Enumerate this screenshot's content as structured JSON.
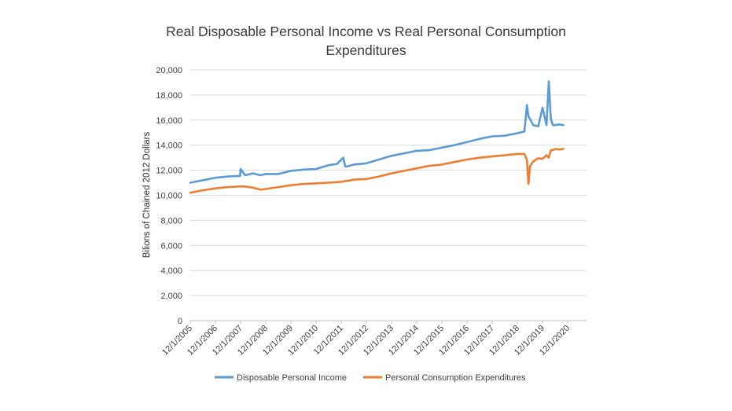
{
  "chart_data": {
    "type": "line",
    "title_line1": "Real Disposable Personal Income vs Real Personal Consumption",
    "title_line2": "Expenditures",
    "xlabel": "",
    "ylabel": "Bilions of Chained 2012 Dollars",
    "ylim": [
      0,
      20000
    ],
    "yticks": [
      "0",
      "2,000",
      "4,000",
      "6,000",
      "8,000",
      "10,000",
      "12,000",
      "14,000",
      "16,000",
      "18,000",
      "20,000"
    ],
    "xticks": [
      "12/1/2005",
      "12/1/2006",
      "12/1/2007",
      "12/1/2008",
      "12/1/2009",
      "12/1/2010",
      "12/1/2011",
      "12/1/2012",
      "12/1/2013",
      "12/1/2014",
      "12/1/2015",
      "12/1/2016",
      "12/1/2017",
      "12/1/2018",
      "12/1/2019",
      "12/1/2020"
    ],
    "grid": "horizontal",
    "legend_position": "bottom",
    "x": [
      2005.92,
      2006.42,
      2006.92,
      2007.42,
      2007.9,
      2007.92,
      2008.1,
      2008.42,
      2008.7,
      2008.92,
      2009.42,
      2009.92,
      2010.42,
      2010.92,
      2011.42,
      2011.75,
      2012.0,
      2012.08,
      2012.17,
      2012.42,
      2012.92,
      2013.42,
      2013.92,
      2014.42,
      2014.92,
      2015.42,
      2015.92,
      2016.42,
      2016.92,
      2017.42,
      2017.92,
      2018.42,
      2018.92,
      2019.2,
      2019.3,
      2019.36,
      2019.42,
      2019.55,
      2019.75,
      2019.92,
      2020.08,
      2020.17,
      2020.25,
      2020.33,
      2020.42,
      2020.58,
      2020.75
    ],
    "series": [
      {
        "name": "Disposable Personal Income",
        "color": "#5b9bd5",
        "values": [
          11000,
          11200,
          11400,
          11500,
          11550,
          12100,
          11600,
          11750,
          11600,
          11700,
          11700,
          11950,
          12050,
          12100,
          12400,
          12500,
          13000,
          12300,
          12300,
          12450,
          12550,
          12850,
          13150,
          13350,
          13550,
          13600,
          13800,
          14000,
          14250,
          14500,
          14700,
          14750,
          14950,
          15100,
          17200,
          16300,
          16100,
          15600,
          15500,
          17000,
          15600,
          19100,
          16100,
          15600,
          15600,
          15650,
          15600
        ]
      },
      {
        "name": "Personal Consumption Expenditures",
        "color": "#ed7d31",
        "values": [
          10200,
          10400,
          10550,
          10650,
          10700,
          10700,
          10700,
          10600,
          10450,
          10500,
          10650,
          10800,
          10900,
          10950,
          11000,
          11050,
          11100,
          11150,
          11150,
          11250,
          11300,
          11500,
          11750,
          11950,
          12150,
          12350,
          12450,
          12650,
          12850,
          13000,
          13100,
          13200,
          13300,
          13300,
          12800,
          10900,
          12300,
          12700,
          12950,
          12900,
          13200,
          13000,
          13600,
          13600,
          13700,
          13650,
          13700
        ]
      }
    ]
  }
}
